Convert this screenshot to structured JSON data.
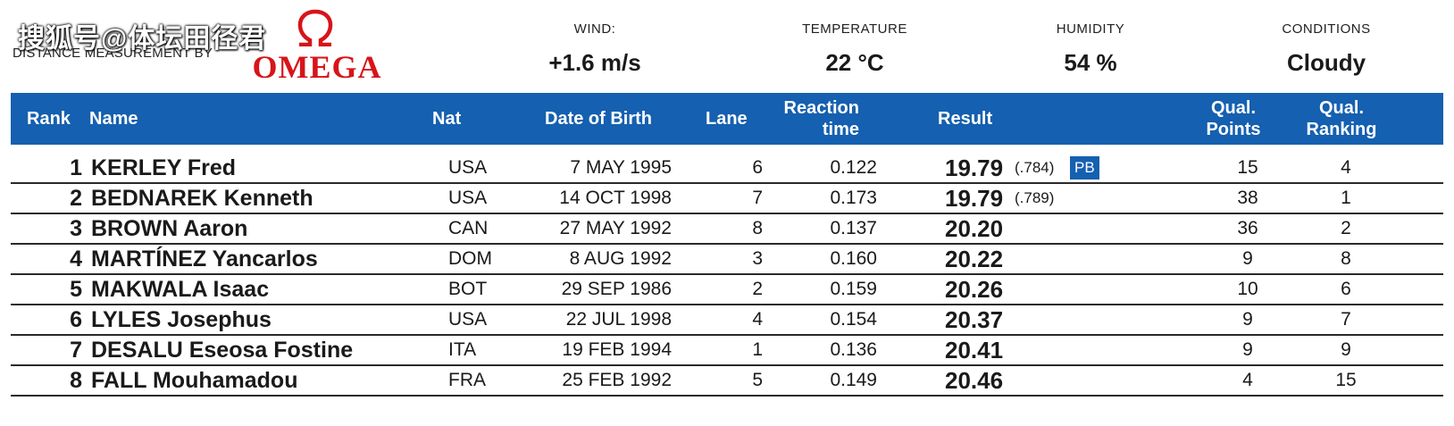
{
  "watermark": "搜狐号@体坛田径君",
  "header": {
    "distance_label": "DISTANCE MEASUREMENT BY",
    "sponsor": "OMEGA",
    "brand_color": "#d7141a",
    "wind": {
      "label": "WIND:",
      "value": "+1.6 m/s"
    },
    "temperature": {
      "label": "TEMPERATURE",
      "value": "22 °C"
    },
    "humidity": {
      "label": "HUMIDITY",
      "value": "54 %"
    },
    "conditions": {
      "label": "CONDITIONS",
      "value": "Cloudy"
    }
  },
  "table": {
    "header_color": "#1560b0",
    "columns": {
      "rank": "Rank",
      "name": "Name",
      "nat": "Nat",
      "dob": "Date of Birth",
      "lane": "Lane",
      "reaction_1": "Reaction",
      "reaction_2": "time",
      "result": "Result",
      "qual_points_1": "Qual.",
      "qual_points_2": "Points",
      "qual_ranking_1": "Qual.",
      "qual_ranking_2": "Ranking"
    },
    "rows": [
      {
        "rank": "1",
        "name": "KERLEY Fred",
        "nat": "USA",
        "dob": "7 MAY 1995",
        "lane": "6",
        "reaction": "0.122",
        "result": "19.79",
        "tiebreak": "(.784)",
        "badge": "PB",
        "qual_points": "15",
        "qual_ranking": "4"
      },
      {
        "rank": "2",
        "name": "BEDNAREK Kenneth",
        "nat": "USA",
        "dob": "14 OCT 1998",
        "lane": "7",
        "reaction": "0.173",
        "result": "19.79",
        "tiebreak": "(.789)",
        "badge": "",
        "qual_points": "38",
        "qual_ranking": "1"
      },
      {
        "rank": "3",
        "name": "BROWN Aaron",
        "nat": "CAN",
        "dob": "27 MAY 1992",
        "lane": "8",
        "reaction": "0.137",
        "result": "20.20",
        "tiebreak": "",
        "badge": "",
        "qual_points": "36",
        "qual_ranking": "2"
      },
      {
        "rank": "4",
        "name": "MARTÍNEZ Yancarlos",
        "nat": "DOM",
        "dob": "8 AUG 1992",
        "lane": "3",
        "reaction": "0.160",
        "result": "20.22",
        "tiebreak": "",
        "badge": "",
        "qual_points": "9",
        "qual_ranking": "8"
      },
      {
        "rank": "5",
        "name": "MAKWALA Isaac",
        "nat": "BOT",
        "dob": "29 SEP 1986",
        "lane": "2",
        "reaction": "0.159",
        "result": "20.26",
        "tiebreak": "",
        "badge": "",
        "qual_points": "10",
        "qual_ranking": "6"
      },
      {
        "rank": "6",
        "name": "LYLES Josephus",
        "nat": "USA",
        "dob": "22 JUL 1998",
        "lane": "4",
        "reaction": "0.154",
        "result": "20.37",
        "tiebreak": "",
        "badge": "",
        "qual_points": "9",
        "qual_ranking": "7"
      },
      {
        "rank": "7",
        "name": "DESALU Eseosa Fostine",
        "nat": "ITA",
        "dob": "19 FEB 1994",
        "lane": "1",
        "reaction": "0.136",
        "result": "20.41",
        "tiebreak": "",
        "badge": "",
        "qual_points": "9",
        "qual_ranking": "9"
      },
      {
        "rank": "8",
        "name": "FALL Mouhamadou",
        "nat": "FRA",
        "dob": "25 FEB 1992",
        "lane": "5",
        "reaction": "0.149",
        "result": "20.46",
        "tiebreak": "",
        "badge": "",
        "qual_points": "4",
        "qual_ranking": "15"
      }
    ]
  }
}
